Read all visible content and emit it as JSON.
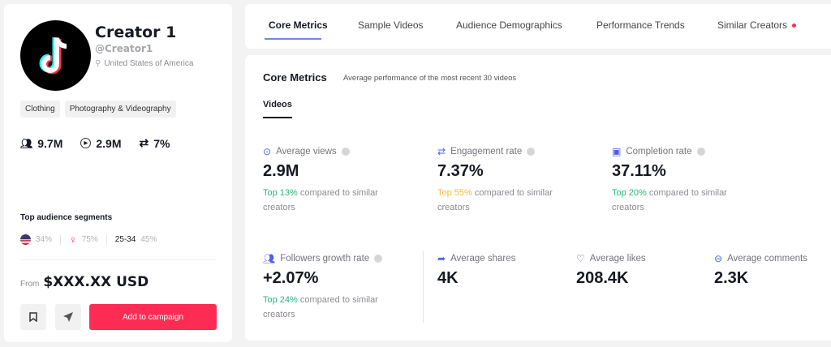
{
  "creator": {
    "name": "Creator 1",
    "handle": "@Creator1",
    "location": "United States of America",
    "tags": [
      "Clothing",
      "Photography & Videography"
    ],
    "stats": {
      "followers": "9.7M",
      "views": "2.9M",
      "engagement": "7%"
    },
    "segments_title": "Top audience segments",
    "segments": {
      "country_pct": "34%",
      "gender_pct": "75%",
      "age": "25-34",
      "age_pct": "45%"
    },
    "price_label": "From",
    "price": "$XXX.XX USD",
    "cta": "Add to campaign"
  },
  "tabs": [
    {
      "label": "Core Metrics",
      "active": true
    },
    {
      "label": "Sample Videos"
    },
    {
      "label": "Audience Demographics"
    },
    {
      "label": "Performance Trends"
    },
    {
      "label": "Similar Creators",
      "badge": true
    }
  ],
  "core": {
    "title": "Core Metrics",
    "subtitle": "Average performance of the most recent 30 videos",
    "subtab": "Videos",
    "metrics": [
      {
        "label": "Average views",
        "value": "2.9M",
        "rank": "Top 13%",
        "rank_color": "#25b97b",
        "compare": " compared to similar creators",
        "icon": "play-circle-icon"
      },
      {
        "label": "Engagement rate",
        "value": "7.37%",
        "rank": "Top 55%",
        "rank_color": "#f5b83d",
        "compare": " compared to similar creators",
        "icon": "repeat-icon"
      },
      {
        "label": "Completion rate",
        "value": "37.11%",
        "rank": "Top 20%",
        "rank_color": "#25b97b",
        "compare": " compared to similar creators",
        "icon": "completion-icon"
      },
      {
        "label": "Followers growth rate",
        "value": "+2.07%",
        "rank": "Top 24%",
        "rank_color": "#25b97b",
        "compare": " compared to similar creators",
        "icon": "users-icon"
      },
      {
        "label": "Average shares",
        "value": "4K",
        "icon": "share-icon"
      },
      {
        "label": "Average likes",
        "value": "208.4K",
        "icon": "heart-icon"
      },
      {
        "label": "Average comments",
        "value": "2.3K",
        "icon": "comment-icon"
      }
    ]
  },
  "colors": {
    "accent": "#fe2c55",
    "tab_underline": "#6f86f0",
    "icon_blue": "#4a63e0"
  }
}
